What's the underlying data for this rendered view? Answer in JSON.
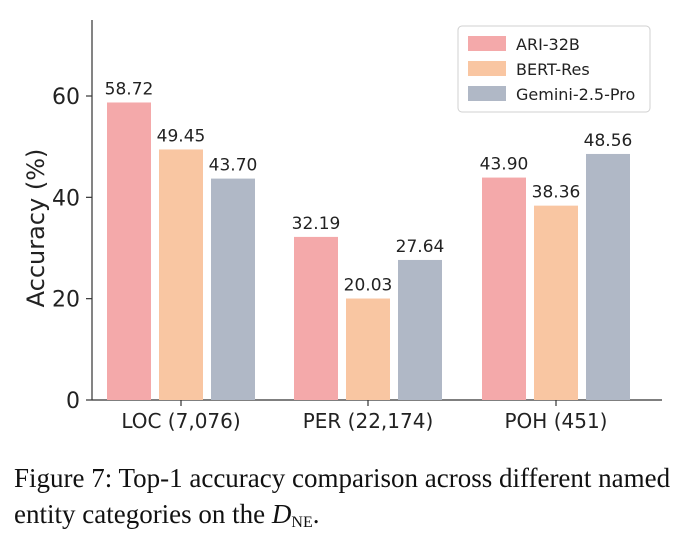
{
  "chart_data": {
    "type": "bar",
    "categories": [
      "LOC (7,076)",
      "PER (22,174)",
      "POH (451)"
    ],
    "series": [
      {
        "name": "ARI-32B",
        "color": "#f4a9aa",
        "values": [
          58.72,
          32.19,
          43.9
        ],
        "labels": [
          "58.72",
          "32.19",
          "43.90"
        ]
      },
      {
        "name": "BERT-Res",
        "color": "#f9c6a2",
        "values": [
          49.45,
          20.03,
          38.36
        ],
        "labels": [
          "49.45",
          "20.03",
          "38.36"
        ]
      },
      {
        "name": "Gemini-2.5-Pro",
        "color": "#b0b8c6",
        "values": [
          43.7,
          27.64,
          48.56
        ],
        "labels": [
          "43.70",
          "27.64",
          "48.56"
        ]
      }
    ],
    "ylabel": "Accuracy (%)",
    "ylim": [
      0,
      75
    ],
    "yticks": [
      "0",
      "20",
      "40",
      "60"
    ],
    "grid": false,
    "legend": "top-right"
  },
  "caption": {
    "text": "Figure 7: Top-1 accuracy comparison across different named entity categories on the ",
    "math_base": "D",
    "math_sub": "NE",
    "tail": "."
  }
}
